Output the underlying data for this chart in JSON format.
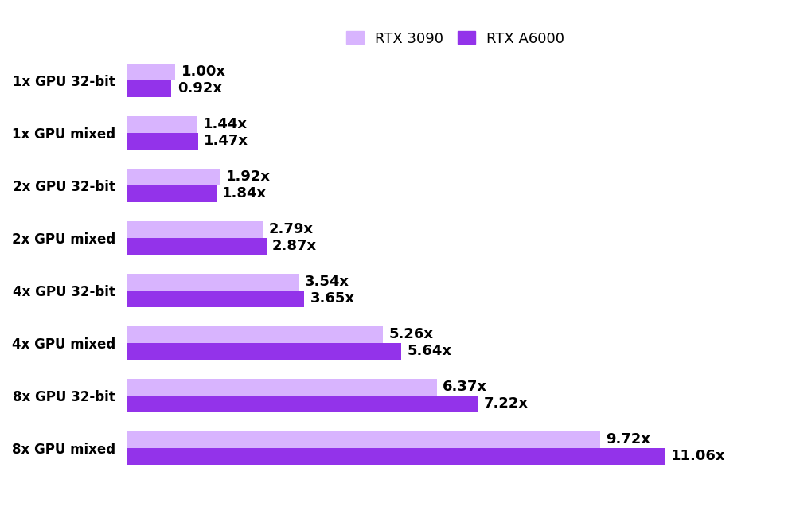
{
  "categories": [
    "1x GPU 32-bit",
    "1x GPU mixed",
    "2x GPU 32-bit",
    "2x GPU mixed",
    "4x GPU 32-bit",
    "4x GPU mixed",
    "8x GPU 32-bit",
    "8x GPU mixed"
  ],
  "rtx3090": [
    1.0,
    1.44,
    1.92,
    2.79,
    3.54,
    5.26,
    6.37,
    9.72
  ],
  "rtxa6000": [
    0.92,
    1.47,
    1.84,
    2.87,
    3.65,
    5.64,
    7.22,
    11.06
  ],
  "color_3090": "#d8b4fe",
  "color_a6000": "#9333ea",
  "background_color": "#ffffff",
  "legend_label_3090": "RTX 3090",
  "legend_label_a6000": "RTX A6000",
  "bar_height": 0.32,
  "tick_fontsize": 12,
  "legend_fontsize": 13,
  "value_fontsize": 13,
  "xlim_max": 13.5
}
